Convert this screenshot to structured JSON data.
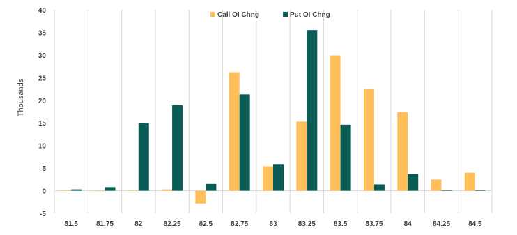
{
  "chart_data": {
    "type": "bar",
    "categories": [
      "81.5",
      "81.75",
      "82",
      "82.25",
      "82.5",
      "82.75",
      "83",
      "83.25",
      "83.5",
      "83.75",
      "84",
      "84.25",
      "84.5"
    ],
    "series": [
      {
        "name": "Call OI Chng",
        "color": "#FFC05C",
        "values": [
          0.1,
          0.0,
          0.1,
          0.3,
          -2.8,
          26.2,
          5.4,
          15.3,
          29.9,
          22.5,
          17.4,
          2.5,
          4.0
        ]
      },
      {
        "name": "Put OI Chng",
        "color": "#0B5C55",
        "values": [
          0.3,
          0.8,
          14.9,
          18.9,
          1.5,
          21.3,
          5.9,
          35.5,
          14.6,
          1.4,
          3.7,
          0.1,
          0.1
        ]
      }
    ],
    "ylabel": "Thousands",
    "ylim": [
      -5,
      40
    ],
    "yticks": [
      "-5",
      "0",
      "5",
      "10",
      "15",
      "20",
      "25",
      "30",
      "35",
      "40"
    ],
    "grid": "vertical-category-dividers",
    "legend_position": "top-center"
  }
}
